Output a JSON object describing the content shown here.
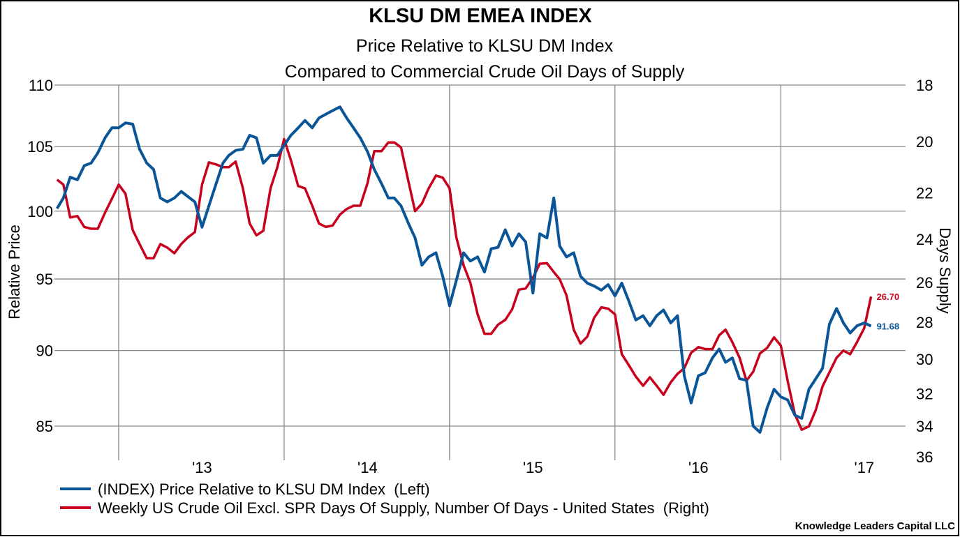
{
  "chart_data": {
    "type": "line",
    "title": "KLSU DM EMEA INDEX",
    "subtitle": [
      "Price Relative to KLSU DM Index",
      "Compared to Commercial Crude Oil Days of Supply"
    ],
    "ylabel_left": "Relative Price",
    "ylabel_right": "Days Supply",
    "y_left": {
      "scale": "log",
      "lim": [
        83,
        110
      ],
      "ticks": [
        110,
        105,
        100,
        95,
        90,
        85
      ]
    },
    "y_right": {
      "scale": "log",
      "inverted": true,
      "lim": [
        18,
        36
      ],
      "ticks": [
        18,
        20,
        22,
        24,
        26,
        28,
        30,
        32,
        34,
        36
      ]
    },
    "x_ticks": [
      {
        "label": "'13",
        "date": "2013-01-01"
      },
      {
        "label": "'14",
        "date": "2014-01-01"
      },
      {
        "label": "'15",
        "date": "2015-01-01"
      },
      {
        "label": "'16",
        "date": "2016-01-01"
      },
      {
        "label": "'17",
        "date": "2017-01-01"
      }
    ],
    "grid": true,
    "legend_position": "bottom-left",
    "credit": "Knowledge Leaders Capital LLC",
    "x": [
      "2012-02-16",
      "2012-03-01",
      "2012-03-16",
      "2012-04-01",
      "2012-04-16",
      "2012-05-01",
      "2012-05-16",
      "2012-06-01",
      "2012-06-16",
      "2012-07-01",
      "2012-07-16",
      "2012-08-01",
      "2012-08-16",
      "2012-09-01",
      "2012-09-16",
      "2012-10-01",
      "2012-10-16",
      "2012-11-01",
      "2012-11-16",
      "2012-12-01",
      "2012-12-16",
      "2013-01-01",
      "2013-01-16",
      "2013-02-01",
      "2013-02-16",
      "2013-03-01",
      "2013-03-16",
      "2013-04-01",
      "2013-04-16",
      "2013-05-01",
      "2013-05-16",
      "2013-06-01",
      "2013-06-16",
      "2013-07-01",
      "2013-07-16",
      "2013-08-01",
      "2013-08-16",
      "2013-09-01",
      "2013-09-16",
      "2013-10-01",
      "2013-10-16",
      "2013-11-01",
      "2013-11-16",
      "2013-12-01",
      "2013-12-16",
      "2014-01-01",
      "2014-01-16",
      "2014-02-01",
      "2014-02-16",
      "2014-03-01",
      "2014-03-16",
      "2014-04-01",
      "2014-04-16",
      "2014-05-01",
      "2014-05-16",
      "2014-06-01",
      "2014-06-16",
      "2014-07-01",
      "2014-07-16",
      "2014-08-01",
      "2014-08-16",
      "2014-09-01",
      "2014-09-16",
      "2014-10-01",
      "2014-10-16",
      "2014-11-01",
      "2014-11-16",
      "2014-12-01",
      "2014-12-16",
      "2015-01-01",
      "2015-01-16",
      "2015-02-01",
      "2015-02-16",
      "2015-03-01",
      "2015-03-16",
      "2015-04-01",
      "2015-04-16",
      "2015-05-01",
      "2015-05-16",
      "2015-06-01",
      "2015-06-16",
      "2015-07-01",
      "2015-07-16",
      "2015-08-01",
      "2015-08-16",
      "2015-09-01",
      "2015-09-16",
      "2015-10-01",
      "2015-10-16",
      "2015-11-01",
      "2015-11-16",
      "2015-12-01",
      "2015-12-16",
      "2016-01-01",
      "2016-01-16",
      "2016-02-01",
      "2016-02-16",
      "2016-03-01",
      "2016-03-16",
      "2016-04-01",
      "2016-04-16",
      "2016-05-01",
      "2016-05-16",
      "2016-06-01",
      "2016-06-16",
      "2016-07-01",
      "2016-07-16",
      "2016-08-01",
      "2016-08-16",
      "2016-09-01",
      "2016-09-16",
      "2016-10-01",
      "2016-10-16",
      "2016-11-01",
      "2016-11-16",
      "2016-12-01",
      "2016-12-16",
      "2017-01-01",
      "2017-01-16"
    ],
    "series": [
      {
        "name": "(INDEX) Price Relative to KLSU DM Index  (Left)",
        "axis": "left",
        "color": "#0A5597",
        "last_label": "91.68",
        "values": [
          100.2,
          101.0,
          102.6,
          102.4,
          103.5,
          103.7,
          104.5,
          105.7,
          106.5,
          106.5,
          106.9,
          106.8,
          104.8,
          103.7,
          103.2,
          101.0,
          100.7,
          101.0,
          101.5,
          101.1,
          100.7,
          98.8,
          100.4,
          102.1,
          103.7,
          104.3,
          104.7,
          104.8,
          105.9,
          105.7,
          103.7,
          104.3,
          104.3,
          105.1,
          105.9,
          106.5,
          107.1,
          106.5,
          107.3,
          107.6,
          107.9,
          108.2,
          107.3,
          106.5,
          105.7,
          104.6,
          103.2,
          102.1,
          101.0,
          101.0,
          100.4,
          99.1,
          98.0,
          96.0,
          96.6,
          96.9,
          95.2,
          93.1,
          94.9,
          96.9,
          96.3,
          96.6,
          95.5,
          97.2,
          97.3,
          98.6,
          97.4,
          98.3,
          97.7,
          94.0,
          98.3,
          98.0,
          101.0,
          97.4,
          96.6,
          96.9,
          95.2,
          94.7,
          94.5,
          94.2,
          94.6,
          93.8,
          94.7,
          93.4,
          92.1,
          92.4,
          91.7,
          92.4,
          92.8,
          91.9,
          92.4,
          88.3,
          86.5,
          88.3,
          88.5,
          89.5,
          90.1,
          89.2,
          89.5,
          88.1,
          88.0,
          85.0,
          84.6,
          86.2,
          87.4,
          86.9,
          86.7,
          85.7,
          85.5,
          87.4,
          88.1,
          88.8,
          91.8,
          92.9,
          91.9,
          91.2,
          91.7,
          91.9,
          91.68
        ]
      },
      {
        "name": "Weekly US Crude Oil Excl. SPR Days Of Supply, Number Of Days - United States  (Right)",
        "axis": "right",
        "color": "#C8001E",
        "last_label": "26.70",
        "values": [
          21.47,
          21.67,
          23.04,
          22.98,
          23.45,
          23.53,
          23.53,
          22.83,
          22.25,
          21.67,
          22.04,
          23.59,
          24.21,
          24.86,
          24.86,
          24.21,
          24.37,
          24.63,
          24.21,
          23.91,
          23.68,
          21.67,
          20.79,
          20.87,
          20.98,
          20.98,
          20.76,
          21.82,
          23.3,
          23.82,
          23.62,
          21.82,
          20.98,
          19.91,
          20.71,
          21.73,
          21.82,
          22.54,
          23.3,
          23.45,
          23.39,
          22.92,
          22.68,
          22.54,
          22.54,
          21.61,
          20.36,
          20.36,
          20.03,
          20.03,
          20.22,
          21.52,
          22.77,
          22.45,
          21.82,
          21.31,
          21.39,
          21.82,
          23.91,
          25.19,
          26.02,
          27.6,
          28.62,
          28.62,
          28.14,
          27.89,
          27.35,
          26.36,
          26.3,
          25.78,
          25.12,
          25.09,
          25.51,
          25.85,
          26.64,
          28.4,
          29.15,
          28.77,
          27.78,
          27.24,
          27.31,
          27.6,
          29.73,
          30.36,
          31.0,
          31.53,
          31.04,
          31.53,
          32.07,
          31.33,
          30.84,
          30.52,
          29.65,
          29.34,
          29.45,
          29.45,
          28.7,
          28.4,
          29.07,
          29.93,
          31.24,
          30.72,
          29.69,
          29.38,
          28.81,
          29.26,
          31.24,
          33.26,
          34.23,
          34.01,
          33.0,
          31.57,
          30.76,
          29.93,
          29.53,
          29.73,
          29.07,
          28.32,
          26.7
        ]
      }
    ]
  }
}
